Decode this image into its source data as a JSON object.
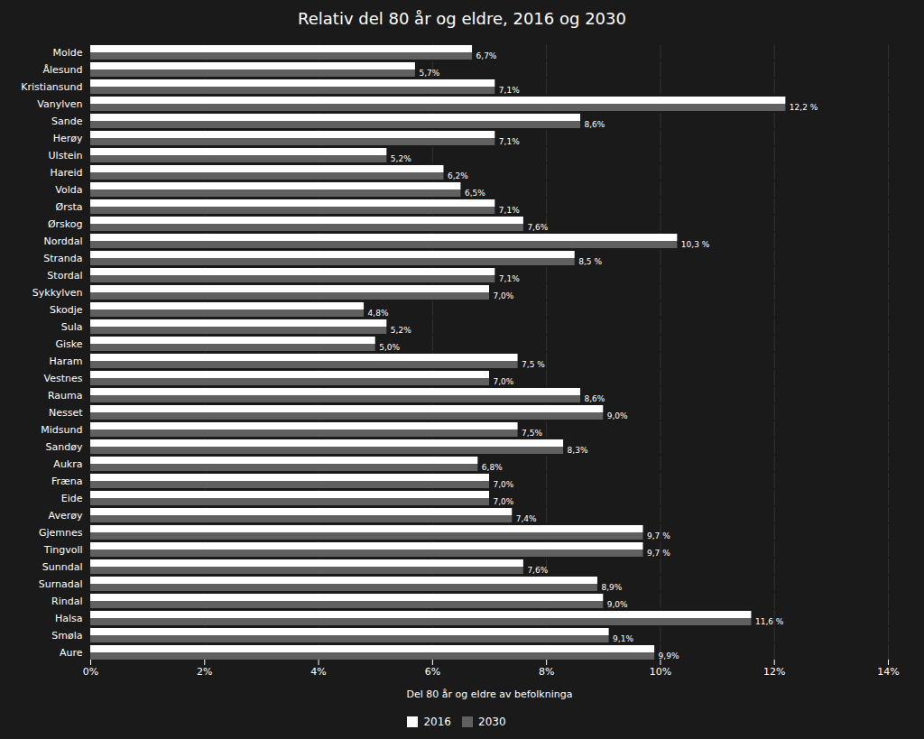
{
  "chart_data": {
    "type": "bar",
    "orientation": "horizontal",
    "title": "Relativ del 80 år og eldre, 2016 og 2030",
    "xlabel": "Del 80 år og eldre av befolkninga",
    "categories": [
      "Molde",
      "Ålesund",
      "Kristiansund",
      "Vanylven",
      "Sande",
      "Herøy",
      "Ulstein",
      "Hareid",
      "Volda",
      "Ørsta",
      "Ørskog",
      "Norddal",
      "Stranda",
      "Stordal",
      "Sykkylven",
      "Skodje",
      "Sula",
      "Giske",
      "Haram",
      "Vestnes",
      "Rauma",
      "Nesset",
      "Midsund",
      "Sandøy",
      "Aukra",
      "Fræna",
      "Eide",
      "Averøy",
      "Gjemnes",
      "Tingvoll",
      "Sunndal",
      "Surnadal",
      "Rindal",
      "Halsa",
      "Smøla",
      "Aure"
    ],
    "series": [
      {
        "name": "2016",
        "color": "#ffffff",
        "values": [
          6.7,
          5.7,
          7.1,
          12.2,
          8.6,
          7.1,
          5.2,
          6.2,
          6.5,
          7.1,
          7.6,
          10.3,
          8.5,
          7.1,
          7.0,
          4.8,
          5.2,
          5.0,
          7.5,
          7.0,
          8.6,
          9.0,
          7.5,
          8.3,
          6.8,
          7.0,
          7.0,
          7.4,
          9.7,
          9.7,
          7.6,
          8.9,
          9.0,
          11.6,
          9.1,
          9.9
        ]
      },
      {
        "name": "2030",
        "color": "#606060",
        "values": [
          6.7,
          5.7,
          7.1,
          12.2,
          8.6,
          7.1,
          5.2,
          6.2,
          6.5,
          7.1,
          7.6,
          10.3,
          8.5,
          7.1,
          7.0,
          4.8,
          5.2,
          5.0,
          7.5,
          7.0,
          8.6,
          9.0,
          7.5,
          8.3,
          6.8,
          7.0,
          7.0,
          7.4,
          9.7,
          9.7,
          7.6,
          8.9,
          9.0,
          11.6,
          9.1,
          9.9
        ],
        "data_labels": true,
        "value_labels": [
          "6,7%",
          "5,7%",
          "7,1%",
          "12,2 %",
          "8,6%",
          "7,1%",
          "5,2%",
          "6,2%",
          "6,5%",
          "7,1%",
          "7,6%",
          "10,3 %",
          "8,5 %",
          "7,1%",
          "7,0%",
          "4,8%",
          "5,2%",
          "5,0%",
          "7,5 %",
          "7,0%",
          "8,6%",
          "9,0%",
          "7,5%",
          "8,3%",
          "6,8%",
          "7,0%",
          "7,0%",
          "7,4%",
          "9,7 %",
          "9,7 %",
          "7,6%",
          "8,9%",
          "9,0%",
          "11,6 %",
          "9,1%",
          "9,9%"
        ]
      }
    ],
    "xlim": [
      0,
      14
    ],
    "xticks": [
      {
        "value": 0,
        "label": "0%"
      },
      {
        "value": 2,
        "label": "2%"
      },
      {
        "value": 4,
        "label": "4%"
      },
      {
        "value": 6,
        "label": "6%"
      },
      {
        "value": 8,
        "label": "8%"
      },
      {
        "value": 10,
        "label": "10%"
      },
      {
        "value": 12,
        "label": "12%"
      },
      {
        "value": 14,
        "label": "14%"
      }
    ],
    "grid": true,
    "legend": "bottom"
  }
}
